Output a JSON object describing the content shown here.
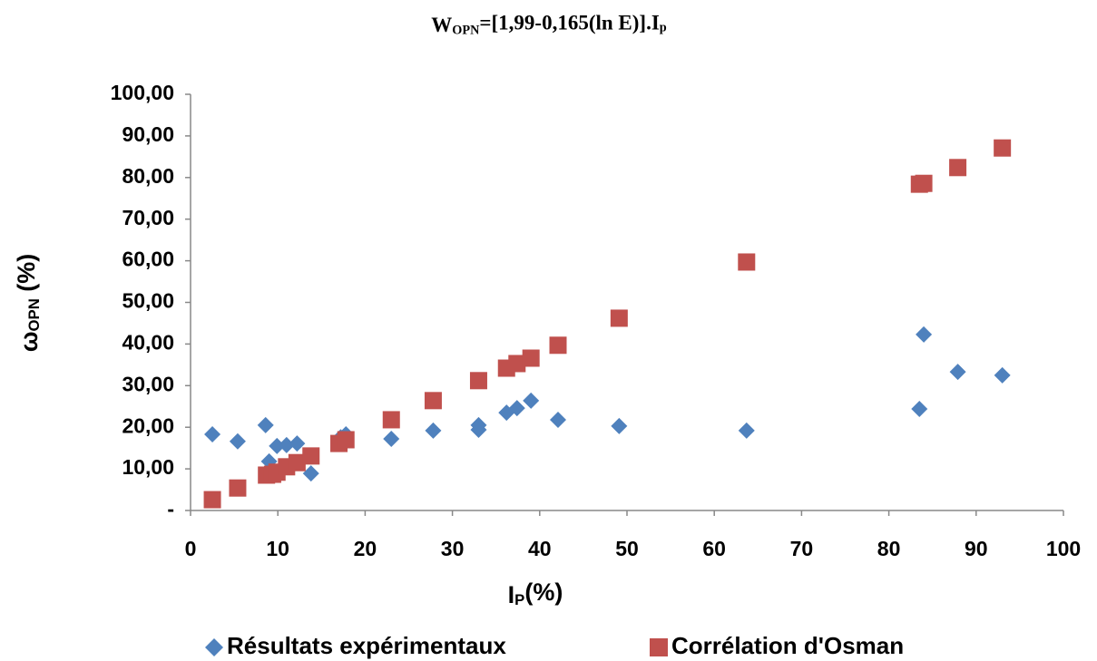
{
  "chart_data": {
    "type": "scatter",
    "title": [
      {
        "text": "W"
      },
      {
        "text": "OPN",
        "sub": true
      },
      {
        "text": "=[1,99-0,165(ln E)].I"
      },
      {
        "text": "p",
        "sub": true
      }
    ],
    "x_label": [
      {
        "text": "I"
      },
      {
        "text": "P",
        "sub": true
      },
      {
        "text": "(%)"
      }
    ],
    "y_label": [
      {
        "text": "ω"
      },
      {
        "text": "OPN",
        "sub": true
      },
      {
        "text": " (%)"
      }
    ],
    "xlim": [
      0,
      100
    ],
    "xticks": [
      0,
      10,
      20,
      30,
      40,
      50,
      60,
      70,
      80,
      90,
      100
    ],
    "ylim": [
      0,
      100
    ],
    "yticks": [
      {
        "value": 0,
        "label": "-"
      },
      {
        "value": 10,
        "label": "10,00"
      },
      {
        "value": 20,
        "label": "20,00"
      },
      {
        "value": 30,
        "label": "30,00"
      },
      {
        "value": 40,
        "label": "40,00"
      },
      {
        "value": 50,
        "label": "50,00"
      },
      {
        "value": 60,
        "label": "60,00"
      },
      {
        "value": 70,
        "label": "70,00"
      },
      {
        "value": 80,
        "label": "80,00"
      },
      {
        "value": 90,
        "label": "90,00"
      },
      {
        "value": 100,
        "label": "100,00"
      }
    ],
    "grid": false,
    "legend": "bottom",
    "series": [
      {
        "name": "Résultats expérimentaux",
        "color": "#4f81bd",
        "marker": "diamond",
        "x": [
          2.5,
          5.4,
          8.6,
          9.0,
          9.9,
          11.0,
          12.2,
          13.8,
          17.2,
          17.8,
          23.0,
          27.8,
          33.0,
          33.0,
          36.2,
          37.4,
          39.0,
          42.1,
          49.1,
          63.7,
          83.5,
          84.0,
          87.9,
          93.0
        ],
        "values": [
          18.3,
          16.6,
          20.5,
          11.8,
          15.5,
          15.7,
          16.1,
          8.9,
          17.6,
          18.3,
          17.2,
          19.2,
          20.5,
          19.4,
          23.5,
          24.6,
          26.4,
          21.8,
          20.3,
          19.2,
          24.4,
          42.3,
          33.3,
          32.5
        ]
      },
      {
        "name": "Corrélation d'Osman",
        "color": "#c0504d",
        "marker": "square",
        "x": [
          2.5,
          5.4,
          8.7,
          9.4,
          9.9,
          11.0,
          12.2,
          13.8,
          17.0,
          17.8,
          23.0,
          27.8,
          33.0,
          36.2,
          37.4,
          39.0,
          42.1,
          49.1,
          63.7,
          83.5,
          84.0,
          87.9,
          93.0
        ],
        "values": [
          2.6,
          5.4,
          8.5,
          8.7,
          9.2,
          10.5,
          11.5,
          13.1,
          16.1,
          17.0,
          21.8,
          26.4,
          31.2,
          34.2,
          35.3,
          36.6,
          39.7,
          46.2,
          59.7,
          78.4,
          78.6,
          82.4,
          87.1
        ]
      }
    ]
  }
}
